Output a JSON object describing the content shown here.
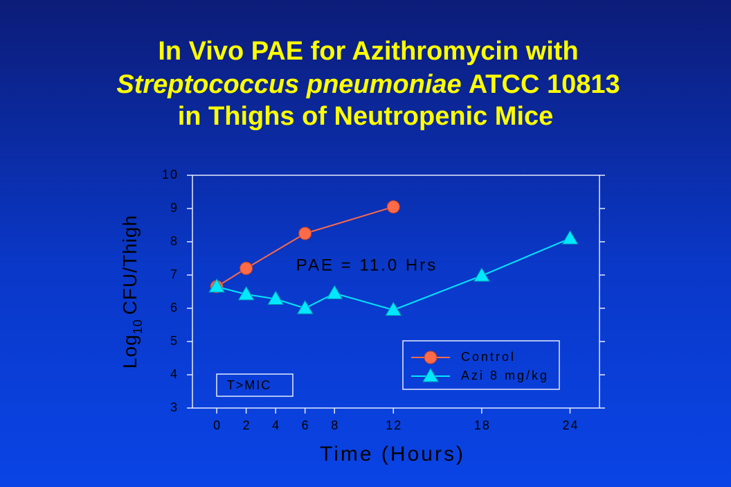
{
  "chart_data": {
    "type": "line",
    "title": {
      "line1": "In Vivo PAE for Azithromycin with",
      "line2_italic": "Streptococcus pneumoniae",
      "line2_rest": "ATCC 10813",
      "line3": "in Thighs of Neutropenic Mice"
    },
    "x_label": "Time (Hours)",
    "y_label": {
      "base": "Log",
      "subscript": "10",
      "rest": "CFU/Thigh"
    },
    "annotations": [
      "PAE = 11.0 Hrs",
      "T>MIC"
    ],
    "series": [
      {
        "name": "Control",
        "color": "#ff6a48",
        "marker": "circle",
        "x": [
          0,
          2,
          6,
          12
        ],
        "values": [
          6.65,
          7.2,
          8.25,
          9.05
        ]
      },
      {
        "name": "Azi 8 mg/kg",
        "color": "#00e8ff",
        "marker": "triangle",
        "x": [
          0,
          2,
          4,
          6,
          8,
          12,
          18,
          24
        ],
        "values": [
          6.65,
          6.42,
          6.28,
          6.0,
          6.45,
          5.95,
          6.98,
          8.1
        ]
      }
    ],
    "xlim": [
      -1.65,
      26
    ],
    "xticks": [
      0,
      2,
      4,
      6,
      8,
      12,
      18,
      24
    ],
    "ylim": [
      3,
      10
    ],
    "yticks": [
      3,
      4,
      5,
      6,
      7,
      8,
      9,
      10
    ],
    "legend": "lower right"
  }
}
